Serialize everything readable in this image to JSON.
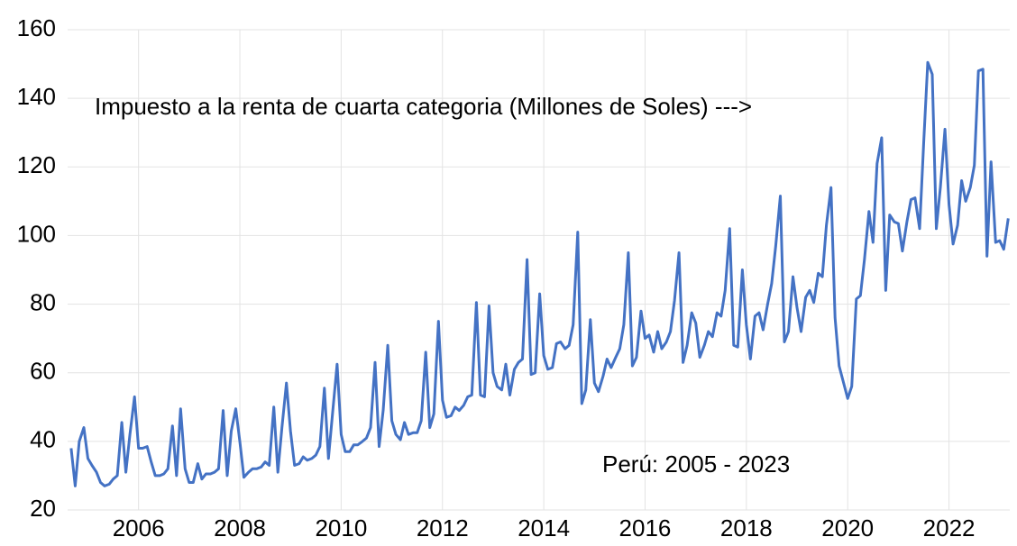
{
  "chart_data": {
    "type": "line",
    "annotations": [
      "Impuesto a la renta de cuarta categoria (Millones de Soles) --->",
      "Perú: 2005 - 2023"
    ],
    "x": [
      2004.67,
      2004.75,
      2004.83,
      2004.92,
      2005,
      2005.08,
      2005.17,
      2005.25,
      2005.33,
      2005.42,
      2005.5,
      2005.58,
      2005.67,
      2005.75,
      2005.83,
      2005.92,
      2006,
      2006.08,
      2006.17,
      2006.25,
      2006.33,
      2006.42,
      2006.5,
      2006.58,
      2006.67,
      2006.75,
      2006.83,
      2006.92,
      2007,
      2007.08,
      2007.17,
      2007.25,
      2007.33,
      2007.42,
      2007.5,
      2007.58,
      2007.67,
      2007.75,
      2007.83,
      2007.92,
      2008,
      2008.08,
      2008.17,
      2008.25,
      2008.33,
      2008.42,
      2008.5,
      2008.58,
      2008.67,
      2008.75,
      2008.83,
      2008.92,
      2009,
      2009.08,
      2009.17,
      2009.25,
      2009.33,
      2009.42,
      2009.5,
      2009.58,
      2009.67,
      2009.75,
      2009.83,
      2009.92,
      2010,
      2010.08,
      2010.17,
      2010.25,
      2010.33,
      2010.42,
      2010.5,
      2010.58,
      2010.67,
      2010.75,
      2010.83,
      2010.92,
      2011,
      2011.08,
      2011.17,
      2011.25,
      2011.33,
      2011.42,
      2011.5,
      2011.58,
      2011.67,
      2011.75,
      2011.83,
      2011.92,
      2012,
      2012.08,
      2012.17,
      2012.25,
      2012.33,
      2012.42,
      2012.5,
      2012.58,
      2012.67,
      2012.75,
      2012.83,
      2012.92,
      2013,
      2013.08,
      2013.17,
      2013.25,
      2013.33,
      2013.42,
      2013.5,
      2013.58,
      2013.67,
      2013.75,
      2013.83,
      2013.92,
      2014,
      2014.08,
      2014.17,
      2014.25,
      2014.33,
      2014.42,
      2014.5,
      2014.58,
      2014.67,
      2014.75,
      2014.83,
      2014.92,
      2015,
      2015.08,
      2015.17,
      2015.25,
      2015.33,
      2015.42,
      2015.5,
      2015.58,
      2015.67,
      2015.75,
      2015.83,
      2015.92,
      2016,
      2016.08,
      2016.17,
      2016.25,
      2016.33,
      2016.42,
      2016.5,
      2016.58,
      2016.67,
      2016.75,
      2016.83,
      2016.92,
      2017,
      2017.08,
      2017.17,
      2017.25,
      2017.33,
      2017.42,
      2017.5,
      2017.58,
      2017.67,
      2017.75,
      2017.83,
      2017.92,
      2018,
      2018.08,
      2018.17,
      2018.25,
      2018.33,
      2018.42,
      2018.5,
      2018.58,
      2018.67,
      2018.75,
      2018.83,
      2018.92,
      2019,
      2019.08,
      2019.17,
      2019.25,
      2019.33,
      2019.42,
      2019.5,
      2019.58,
      2019.67,
      2019.75,
      2019.83,
      2019.92,
      2020,
      2020.08,
      2020.17,
      2020.25,
      2020.33,
      2020.42,
      2020.5,
      2020.58,
      2020.67,
      2020.75,
      2020.83,
      2020.92,
      2021,
      2021.08,
      2021.17,
      2021.25,
      2021.33,
      2021.42,
      2021.5,
      2021.58,
      2021.67,
      2021.75,
      2021.83,
      2021.92,
      2022,
      2022.08,
      2022.17,
      2022.25,
      2022.33,
      2022.42,
      2022.5,
      2022.58,
      2022.67,
      2022.75,
      2022.83,
      2022.92,
      2023,
      2023.08,
      2023.17
    ],
    "series": [
      {
        "color": "#4472c4",
        "values": [
          38,
          27,
          40,
          44,
          35,
          33,
          31,
          28,
          27,
          27.5,
          29,
          30,
          45.5,
          31,
          42,
          53,
          38,
          38,
          38.5,
          34,
          30,
          30,
          30.5,
          32,
          44.5,
          30,
          49.5,
          32,
          28,
          28,
          33.5,
          29,
          30.5,
          30.5,
          31,
          32,
          49,
          30,
          43,
          49.5,
          40,
          29.5,
          31,
          32,
          32,
          32.5,
          34,
          33,
          50,
          31,
          44,
          57,
          43,
          33,
          33.5,
          35.5,
          34.5,
          35,
          36,
          38.5,
          55.5,
          35,
          48,
          62.5,
          42,
          37,
          37,
          39,
          39,
          40,
          41,
          44,
          63,
          38.5,
          49,
          68,
          46,
          42,
          40.5,
          45.5,
          42,
          42.5,
          42.5,
          46,
          66,
          44,
          48,
          75,
          52,
          47,
          47.5,
          50,
          49,
          50.5,
          53,
          53.5,
          80.5,
          53.5,
          53,
          79.5,
          60,
          56,
          55,
          62.5,
          53.5,
          61,
          63,
          64,
          93,
          59.5,
          60,
          83,
          65,
          61,
          61.5,
          68.5,
          69,
          67,
          68,
          74,
          101,
          51,
          55,
          75.5,
          57,
          54.5,
          59,
          64,
          61.5,
          64.5,
          67,
          74,
          95,
          62,
          64.5,
          78,
          70,
          71,
          66,
          72,
          67,
          69,
          72,
          81,
          95,
          63,
          68,
          77.5,
          74.5,
          64.5,
          68,
          72,
          70.5,
          77.5,
          76.5,
          84,
          102,
          68,
          67.5,
          90,
          74,
          64,
          76.5,
          77.5,
          72.5,
          80,
          86,
          97,
          111.5,
          69,
          72,
          88,
          79,
          72,
          82,
          84,
          80.5,
          89,
          88,
          103,
          114,
          76,
          62,
          57,
          52.5,
          56,
          81.5,
          82.5,
          93,
          107,
          98,
          121,
          128.5,
          84,
          106,
          104,
          103.5,
          95.5,
          104,
          110.5,
          111,
          102,
          127,
          150.5,
          147,
          102,
          114,
          131,
          109,
          97.5,
          103,
          116,
          110,
          114,
          120.5,
          148,
          148.5,
          94,
          121.5,
          98,
          98.5,
          96,
          105
        ]
      }
    ],
    "xlim": [
      2004.6,
      2023.2
    ],
    "xticks": [
      2006,
      2008,
      2010,
      2012,
      2014,
      2016,
      2018,
      2020,
      2022
    ],
    "ylim": [
      20,
      160
    ],
    "yticks": [
      20,
      40,
      60,
      80,
      100,
      120,
      140,
      160
    ],
    "grid": true
  }
}
